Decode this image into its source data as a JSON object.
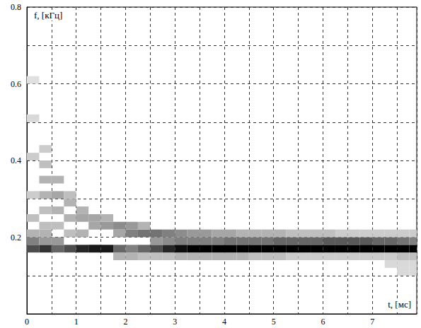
{
  "chart_data": {
    "type": "heatmap",
    "x_label": "t, [мс]",
    "y_label": "f, [кГц]",
    "xlim": [
      0,
      7.9
    ],
    "xticks": [
      0,
      1,
      2,
      3,
      4,
      5,
      6,
      7
    ],
    "ylim": [
      0,
      0.8
    ],
    "yticks": [
      0.2,
      0.4,
      0.6,
      0.8
    ],
    "grid": true,
    "t_step": 0.25,
    "f_step": 0.02,
    "vlim": [
      0,
      1
    ],
    "cells": [
      [
        0,
        0.16,
        0.7
      ],
      [
        0,
        0.18,
        0.5
      ],
      [
        0,
        0.2,
        0.3
      ],
      [
        0,
        0.24,
        0.25
      ],
      [
        0,
        0.3,
        0.2
      ],
      [
        0,
        0.4,
        0.2
      ],
      [
        0,
        0.5,
        0.15
      ],
      [
        0,
        0.6,
        0.12
      ],
      [
        0.25,
        0.16,
        0.8
      ],
      [
        0.25,
        0.18,
        0.4
      ],
      [
        0.25,
        0.2,
        0.3
      ],
      [
        0.25,
        0.22,
        0.25
      ],
      [
        0.25,
        0.26,
        0.25
      ],
      [
        0.25,
        0.3,
        0.3
      ],
      [
        0.25,
        0.34,
        0.3
      ],
      [
        0.25,
        0.38,
        0.25
      ],
      [
        0.25,
        0.42,
        0.2
      ],
      [
        0.5,
        0.16,
        0.6
      ],
      [
        0.5,
        0.18,
        0.4
      ],
      [
        0.5,
        0.22,
        0.25
      ],
      [
        0.5,
        0.26,
        0.3
      ],
      [
        0.5,
        0.3,
        0.35
      ],
      [
        0.5,
        0.34,
        0.3
      ],
      [
        0.75,
        0.16,
        0.7
      ],
      [
        0.75,
        0.2,
        0.25
      ],
      [
        0.75,
        0.24,
        0.3
      ],
      [
        0.75,
        0.28,
        0.3
      ],
      [
        0.75,
        0.3,
        0.25
      ],
      [
        1,
        0.16,
        0.85
      ],
      [
        1,
        0.2,
        0.3
      ],
      [
        1,
        0.24,
        0.35
      ],
      [
        1,
        0.26,
        0.3
      ],
      [
        1.25,
        0.16,
        0.9
      ],
      [
        1.25,
        0.22,
        0.35
      ],
      [
        1.25,
        0.24,
        0.35
      ],
      [
        1.5,
        0.16,
        0.9
      ],
      [
        1.5,
        0.22,
        0.4
      ],
      [
        1.5,
        0.24,
        0.3
      ],
      [
        1.75,
        0.14,
        0.3
      ],
      [
        1.75,
        0.16,
        0.6
      ],
      [
        1.75,
        0.2,
        0.35
      ],
      [
        1.75,
        0.22,
        0.45
      ],
      [
        2,
        0.14,
        0.3
      ],
      [
        2,
        0.16,
        0.5
      ],
      [
        2,
        0.2,
        0.5
      ],
      [
        2,
        0.22,
        0.4
      ],
      [
        2.25,
        0.14,
        0.25
      ],
      [
        2.25,
        0.16,
        0.6
      ],
      [
        2.25,
        0.2,
        0.55
      ],
      [
        2.25,
        0.22,
        0.3
      ],
      [
        2.5,
        0.14,
        0.25
      ],
      [
        2.5,
        0.16,
        0.7
      ],
      [
        2.5,
        0.18,
        0.4
      ],
      [
        2.5,
        0.2,
        0.55
      ],
      [
        2.75,
        0.14,
        0.25
      ],
      [
        2.75,
        0.16,
        0.85
      ],
      [
        2.75,
        0.18,
        0.45
      ],
      [
        2.75,
        0.2,
        0.5
      ],
      [
        3,
        0.14,
        0.3
      ],
      [
        3,
        0.16,
        0.95
      ],
      [
        3,
        0.18,
        0.5
      ],
      [
        3,
        0.2,
        0.45
      ],
      [
        3.25,
        0.14,
        0.3
      ],
      [
        3.25,
        0.16,
        1
      ],
      [
        3.25,
        0.18,
        0.5
      ],
      [
        3.25,
        0.2,
        0.4
      ],
      [
        3.5,
        0.14,
        0.3
      ],
      [
        3.5,
        0.16,
        1
      ],
      [
        3.5,
        0.18,
        0.5
      ],
      [
        3.5,
        0.2,
        0.4
      ],
      [
        3.75,
        0.14,
        0.3
      ],
      [
        3.75,
        0.16,
        1
      ],
      [
        3.75,
        0.18,
        0.5
      ],
      [
        3.75,
        0.2,
        0.35
      ],
      [
        4,
        0.14,
        0.3
      ],
      [
        4,
        0.16,
        1
      ],
      [
        4,
        0.18,
        0.55
      ],
      [
        4,
        0.2,
        0.35
      ],
      [
        4.25,
        0.14,
        0.3
      ],
      [
        4.25,
        0.16,
        1
      ],
      [
        4.25,
        0.18,
        0.55
      ],
      [
        4.25,
        0.2,
        0.3
      ],
      [
        4.5,
        0.14,
        0.25
      ],
      [
        4.5,
        0.16,
        1
      ],
      [
        4.5,
        0.18,
        0.55
      ],
      [
        4.5,
        0.2,
        0.3
      ],
      [
        4.75,
        0.14,
        0.25
      ],
      [
        4.75,
        0.16,
        1
      ],
      [
        4.75,
        0.18,
        0.55
      ],
      [
        4.75,
        0.2,
        0.3
      ],
      [
        5,
        0.14,
        0.25
      ],
      [
        5,
        0.16,
        1
      ],
      [
        5,
        0.18,
        0.6
      ],
      [
        5,
        0.2,
        0.3
      ],
      [
        5.25,
        0.14,
        0.2
      ],
      [
        5.25,
        0.16,
        1
      ],
      [
        5.25,
        0.18,
        0.6
      ],
      [
        5.25,
        0.2,
        0.25
      ],
      [
        5.5,
        0.14,
        0.2
      ],
      [
        5.5,
        0.16,
        1
      ],
      [
        5.5,
        0.18,
        0.6
      ],
      [
        5.5,
        0.2,
        0.25
      ],
      [
        5.75,
        0.14,
        0.2
      ],
      [
        5.75,
        0.16,
        1
      ],
      [
        5.75,
        0.18,
        0.6
      ],
      [
        5.75,
        0.2,
        0.25
      ],
      [
        6,
        0.14,
        0.2
      ],
      [
        6,
        0.16,
        1
      ],
      [
        6,
        0.18,
        0.65
      ],
      [
        6,
        0.2,
        0.25
      ],
      [
        6.25,
        0.14,
        0.2
      ],
      [
        6.25,
        0.16,
        1
      ],
      [
        6.25,
        0.18,
        0.65
      ],
      [
        6.25,
        0.2,
        0.2
      ],
      [
        6.5,
        0.14,
        0.2
      ],
      [
        6.5,
        0.16,
        1
      ],
      [
        6.5,
        0.18,
        0.65
      ],
      [
        6.5,
        0.2,
        0.2
      ],
      [
        6.75,
        0.14,
        0.2
      ],
      [
        6.75,
        0.16,
        1
      ],
      [
        6.75,
        0.18,
        0.65
      ],
      [
        6.75,
        0.2,
        0.2
      ],
      [
        7,
        0.14,
        0.2
      ],
      [
        7,
        0.16,
        1
      ],
      [
        7,
        0.18,
        0.6
      ],
      [
        7,
        0.2,
        0.2
      ],
      [
        7.25,
        0.12,
        0.15
      ],
      [
        7.25,
        0.14,
        0.2
      ],
      [
        7.25,
        0.16,
        1
      ],
      [
        7.25,
        0.18,
        0.6
      ],
      [
        7.25,
        0.2,
        0.2
      ],
      [
        7.5,
        0.1,
        0.15
      ],
      [
        7.5,
        0.12,
        0.15
      ],
      [
        7.5,
        0.14,
        0.25
      ],
      [
        7.5,
        0.16,
        1
      ],
      [
        7.5,
        0.18,
        0.55
      ],
      [
        7.5,
        0.2,
        0.2
      ],
      [
        7.75,
        0.1,
        0.15
      ],
      [
        7.75,
        0.12,
        0.15
      ],
      [
        7.75,
        0.14,
        0.25
      ],
      [
        7.75,
        0.16,
        1
      ],
      [
        7.75,
        0.18,
        0.5
      ],
      [
        7.75,
        0.2,
        0.2
      ]
    ]
  }
}
